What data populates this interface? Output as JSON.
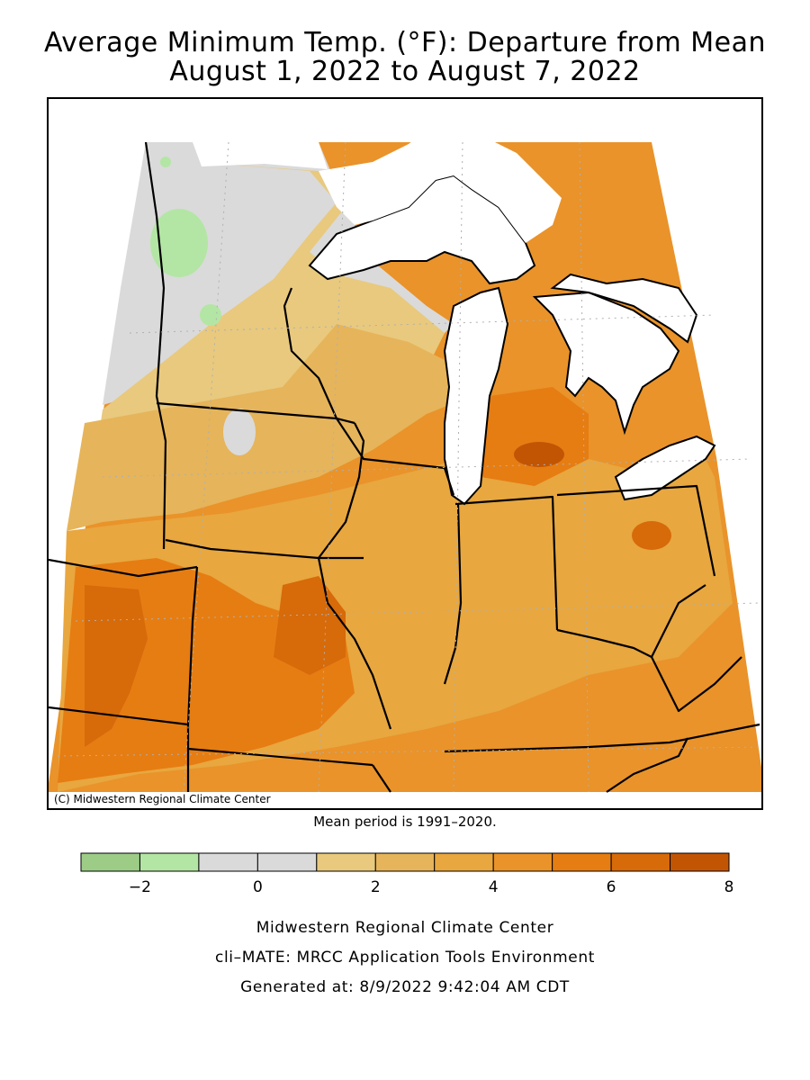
{
  "title_line1": "Average Minimum Temp. (°F): Departure from Mean",
  "title_line2": "August 1, 2022 to August 7, 2022",
  "copyright": "(C) Midwestern Regional Climate Center",
  "mean_period": "Mean period is 1991–2020.",
  "legend": {
    "bins": [
      {
        "from": -3,
        "to": -2,
        "color": "#9dcc87"
      },
      {
        "from": -2,
        "to": -1,
        "color": "#b3e6a4"
      },
      {
        "from": -1,
        "to": 0,
        "color": "#dadada"
      },
      {
        "from": 0,
        "to": 1,
        "color": "#dadada"
      },
      {
        "from": 1,
        "to": 2,
        "color": "#e8c97e"
      },
      {
        "from": 2,
        "to": 3,
        "color": "#e6b45a"
      },
      {
        "from": 3,
        "to": 4,
        "color": "#e8a73f"
      },
      {
        "from": 4,
        "to": 5,
        "color": "#e9932a"
      },
      {
        "from": 5,
        "to": 6,
        "color": "#e67d12"
      },
      {
        "from": 6,
        "to": 7,
        "color": "#d76a09"
      },
      {
        "from": 7,
        "to": 8,
        "color": "#c25504"
      }
    ],
    "tick_labels": [
      "−2",
      "0",
      "2",
      "4",
      "6",
      "8"
    ],
    "tick_values": [
      -2,
      0,
      2,
      4,
      6,
      8
    ]
  },
  "footer": {
    "line1": "Midwestern Regional Climate Center",
    "line2": "cli–MATE: MRCC Application Tools Environment",
    "line3": "Generated at: 8/9/2022 9:42:04 AM CDT"
  }
}
